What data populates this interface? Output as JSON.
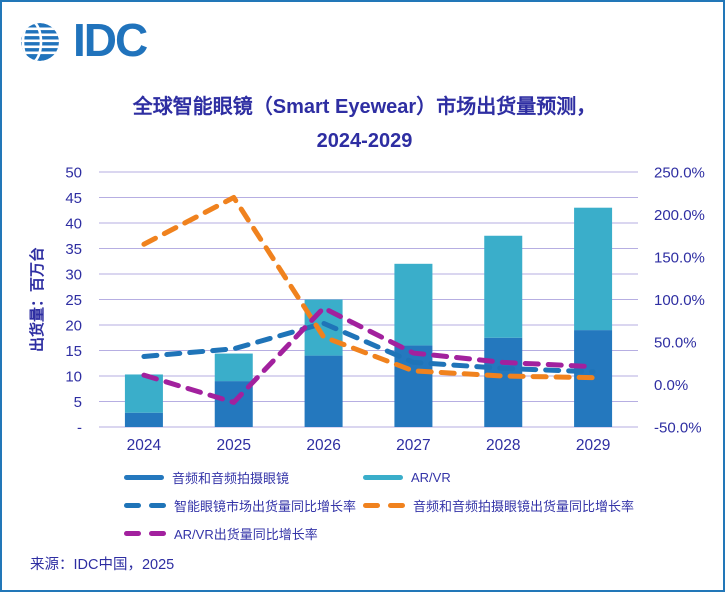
{
  "logo": {
    "text": "IDC"
  },
  "title": {
    "line1": "全球智能眼镜（Smart Eyewear）市场出货量预测，",
    "line2": "2024-2029"
  },
  "source": "来源：IDC中国，2025",
  "colors": {
    "brand_blue": "#2073BC",
    "frame_border": "#2277B8",
    "ink": "#2E2EA2",
    "gridline": "#B6AEE2",
    "bar_audio": "#2478BE",
    "bar_arvr": "#3AAECA",
    "line_market": "#1F74B8",
    "line_audio": "#F0821E",
    "line_arvr": "#A2219E"
  },
  "chart_data": {
    "type": "bar",
    "subtype": "stacked-bars-with-lines",
    "categories": [
      "2024",
      "2025",
      "2026",
      "2027",
      "2028",
      "2029"
    ],
    "bar_series": [
      {
        "name": "音频和音频拍摄眼镜",
        "color": "#2478BE",
        "values": [
          2.8,
          9,
          14,
          16,
          17.5,
          19
        ]
      },
      {
        "name": "AR/VR",
        "color": "#3AAECA",
        "values": [
          7.5,
          5.4,
          11,
          16,
          20,
          24
        ]
      }
    ],
    "line_series": [
      {
        "name": "智能眼镜市场出货量同比增长率",
        "color": "#1F74B8",
        "values": [
          33,
          42,
          72,
          26,
          19,
          15
        ]
      },
      {
        "name": "音频和音频拍摄眼镜出货量同比增长率",
        "color": "#F0821E",
        "values": [
          165,
          220,
          56,
          16,
          10,
          8
        ]
      },
      {
        "name": "AR/VR出货量同比增长率",
        "color": "#A2219E",
        "values": [
          11,
          -21,
          90,
          37,
          26,
          21
        ]
      }
    ],
    "left_axis": {
      "title": "出货量：百万台",
      "min": 0,
      "max": 50,
      "step": 5,
      "ticks": [
        {
          "v": 0,
          "label": "-"
        },
        {
          "v": 5,
          "label": "5"
        },
        {
          "v": 10,
          "label": "10"
        },
        {
          "v": 15,
          "label": "15"
        },
        {
          "v": 20,
          "label": "20"
        },
        {
          "v": 25,
          "label": "25"
        },
        {
          "v": 30,
          "label": "30"
        },
        {
          "v": 35,
          "label": "35"
        },
        {
          "v": 40,
          "label": "40"
        },
        {
          "v": 45,
          "label": "45"
        },
        {
          "v": 50,
          "label": "50"
        }
      ]
    },
    "right_axis": {
      "min": -50,
      "max": 250,
      "step": 50,
      "ticks": [
        {
          "v": -50,
          "label": "-50.0%"
        },
        {
          "v": 0,
          "label": "0.0%"
        },
        {
          "v": 50,
          "label": "50.0%"
        },
        {
          "v": 100,
          "label": "100.0%"
        },
        {
          "v": 150,
          "label": "150.0%"
        },
        {
          "v": 200,
          "label": "200.0%"
        },
        {
          "v": 250,
          "label": "250.0%"
        }
      ]
    },
    "grid": true,
    "legend_position": "bottom"
  },
  "legend": {
    "items": [
      {
        "type": "solid",
        "color": "#2478BE",
        "label": "音频和音频拍摄眼镜"
      },
      {
        "type": "solid",
        "color": "#3AAECA",
        "label": "AR/VR"
      },
      {
        "type": "dashed",
        "color": "#1F74B8",
        "label": "智能眼镜市场出货量同比增长率"
      },
      {
        "type": "dashed",
        "color": "#F0821E",
        "label": "音频和音频拍摄眼镜出货量同比增长率"
      },
      {
        "type": "dashed",
        "color": "#A2219E",
        "label": "AR/VR出货量同比增长率"
      }
    ]
  }
}
